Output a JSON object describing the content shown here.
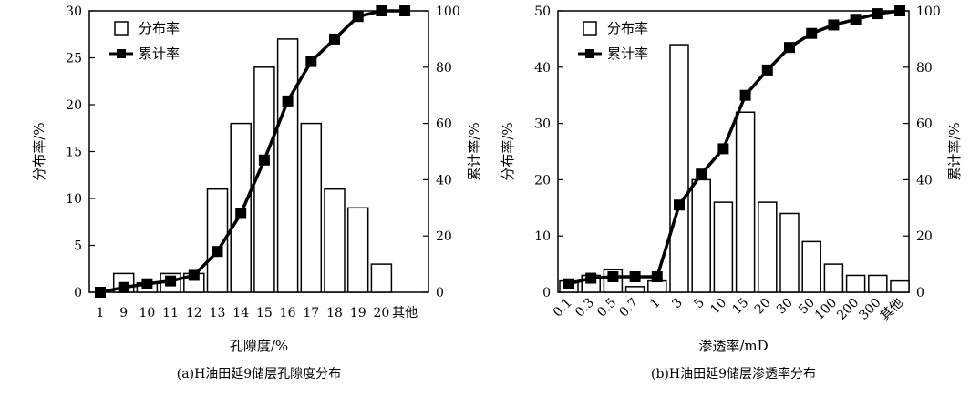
{
  "chart_data": [
    {
      "type": "bar",
      "caption": "(a)H油田延9储层孔隙度分布",
      "xlabel": "孔隙度/%",
      "ylabel": "分布率/%",
      "y2label": "累计率/%",
      "categories": [
        "1",
        "9",
        "10",
        "11",
        "12",
        "13",
        "14",
        "15",
        "16",
        "17",
        "18",
        "19",
        "20",
        "其他"
      ],
      "ylim": [
        0,
        30
      ],
      "yticks": [
        0,
        5,
        10,
        15,
        20,
        25,
        30
      ],
      "y2lim": [
        0,
        100
      ],
      "y2ticks": [
        0,
        20,
        40,
        60,
        80,
        100
      ],
      "grid": false,
      "legend_position": "top-left",
      "series": [
        {
          "name": "分布率",
          "type": "bar",
          "axis": "left",
          "values": [
            0,
            2,
            1,
            2,
            2,
            11,
            18,
            24,
            27,
            18,
            11,
            9,
            3,
            0
          ]
        },
        {
          "name": "累计率",
          "type": "line",
          "axis": "right",
          "values": [
            0,
            1.7,
            3,
            4,
            6,
            14.5,
            28,
            47,
            68,
            82,
            90,
            98,
            100,
            100
          ]
        }
      ]
    },
    {
      "type": "bar",
      "caption": "(b)H油田延9储层渗透率分布",
      "xlabel": "渗透率/mD",
      "ylabel": "分布率/%",
      "y2label": "累计率/%",
      "categories": [
        "0.1",
        "0.3",
        "0.5",
        "0.7",
        "1",
        "3",
        "5",
        "10",
        "15",
        "20",
        "30",
        "50",
        "100",
        "200",
        "300",
        "其他"
      ],
      "ylim": [
        0,
        50
      ],
      "yticks": [
        0,
        10,
        20,
        30,
        40,
        50
      ],
      "y2lim": [
        0,
        100
      ],
      "y2ticks": [
        0,
        20,
        40,
        60,
        80,
        100
      ],
      "grid": false,
      "legend_position": "top-left",
      "series": [
        {
          "name": "分布率",
          "type": "bar",
          "axis": "left",
          "values": [
            2,
            3,
            4,
            1,
            2,
            44,
            20,
            16,
            32,
            16,
            14,
            9,
            5,
            3,
            3,
            2
          ]
        },
        {
          "name": "累计率",
          "type": "line",
          "axis": "right",
          "values": [
            3,
            5,
            5.5,
            5.5,
            5.5,
            31,
            42,
            51,
            70,
            79,
            87,
            92,
            95,
            97,
            99,
            100
          ]
        }
      ]
    }
  ]
}
